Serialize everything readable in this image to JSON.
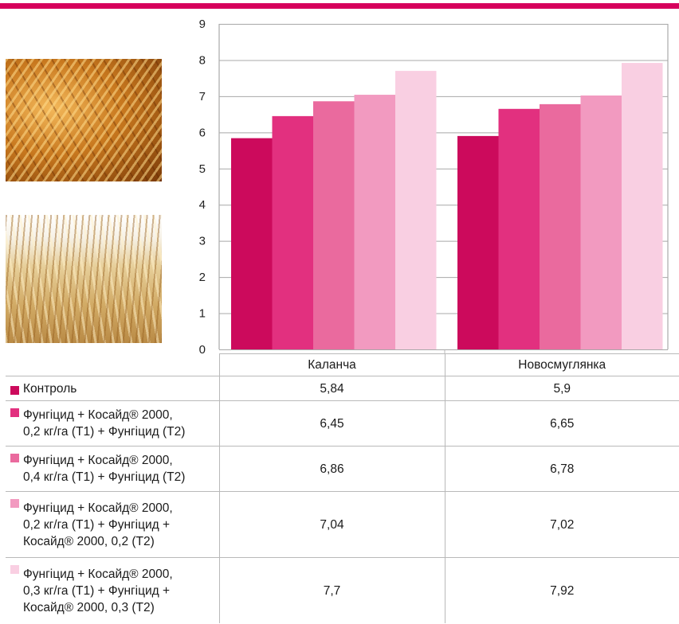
{
  "chart_data": {
    "type": "bar",
    "categories": [
      "Каланча",
      "Новосмуглянка"
    ],
    "series": [
      {
        "name": "Контроль",
        "values": [
          5.84,
          5.9
        ],
        "labels": [
          "5,84",
          "5,9"
        ],
        "color": "#cc0a5c"
      },
      {
        "name": "Фунгіцид + Косайд® 2000, 0,2 кг/га (Т1) + Фунгіцид (Т2)",
        "lines": [
          "Фунгіцид + Косайд® 2000,",
          "0,2 кг/га (Т1) + Фунгіцид (Т2)"
        ],
        "values": [
          6.45,
          6.65
        ],
        "labels": [
          "6,45",
          "6,65"
        ],
        "color": "#e2307f"
      },
      {
        "name": "Фунгіцид + Косайд® 2000, 0,4 кг/га (Т1) + Фунгіцид (Т2)",
        "lines": [
          "Фунгіцид + Косайд® 2000,",
          "0,4 кг/га (Т1) + Фунгіцид (Т2)"
        ],
        "values": [
          6.86,
          6.78
        ],
        "labels": [
          "6,86",
          "6,78"
        ],
        "color": "#ea6a9e"
      },
      {
        "name": "Фунгіцид + Косайд® 2000, 0,2 кг/га (Т1) + Фунгіцид + Косайд® 2000, 0,2 (Т2)",
        "lines": [
          "Фунгіцид + Косайд® 2000,",
          "0,2 кг/га (Т1) + Фунгіцид +",
          "Косайд® 2000, 0,2 (Т2)"
        ],
        "values": [
          7.04,
          7.02
        ],
        "labels": [
          "7,04",
          "7,02"
        ],
        "color": "#f29ac0"
      },
      {
        "name": "Фунгіцид + Косайд® 2000, 0,3 кг/га (Т1) + Фунгіцид + Косайд® 2000, 0,3 (Т2)",
        "lines": [
          "Фунгіцид + Косайд® 2000,",
          "0,3 кг/га (Т1) + Фунгіцид +",
          "Косайд® 2000, 0,3 (Т2)"
        ],
        "values": [
          7.7,
          7.92
        ],
        "labels": [
          "7,7",
          "7,92"
        ],
        "color": "#f9cfe2"
      }
    ],
    "ylim": [
      0,
      9
    ],
    "yticks": [
      "0",
      "1",
      "2",
      "3",
      "4",
      "5",
      "6",
      "7",
      "8",
      "9"
    ],
    "grid": true,
    "legend": "table-below"
  },
  "brand_color": "#d6005c"
}
